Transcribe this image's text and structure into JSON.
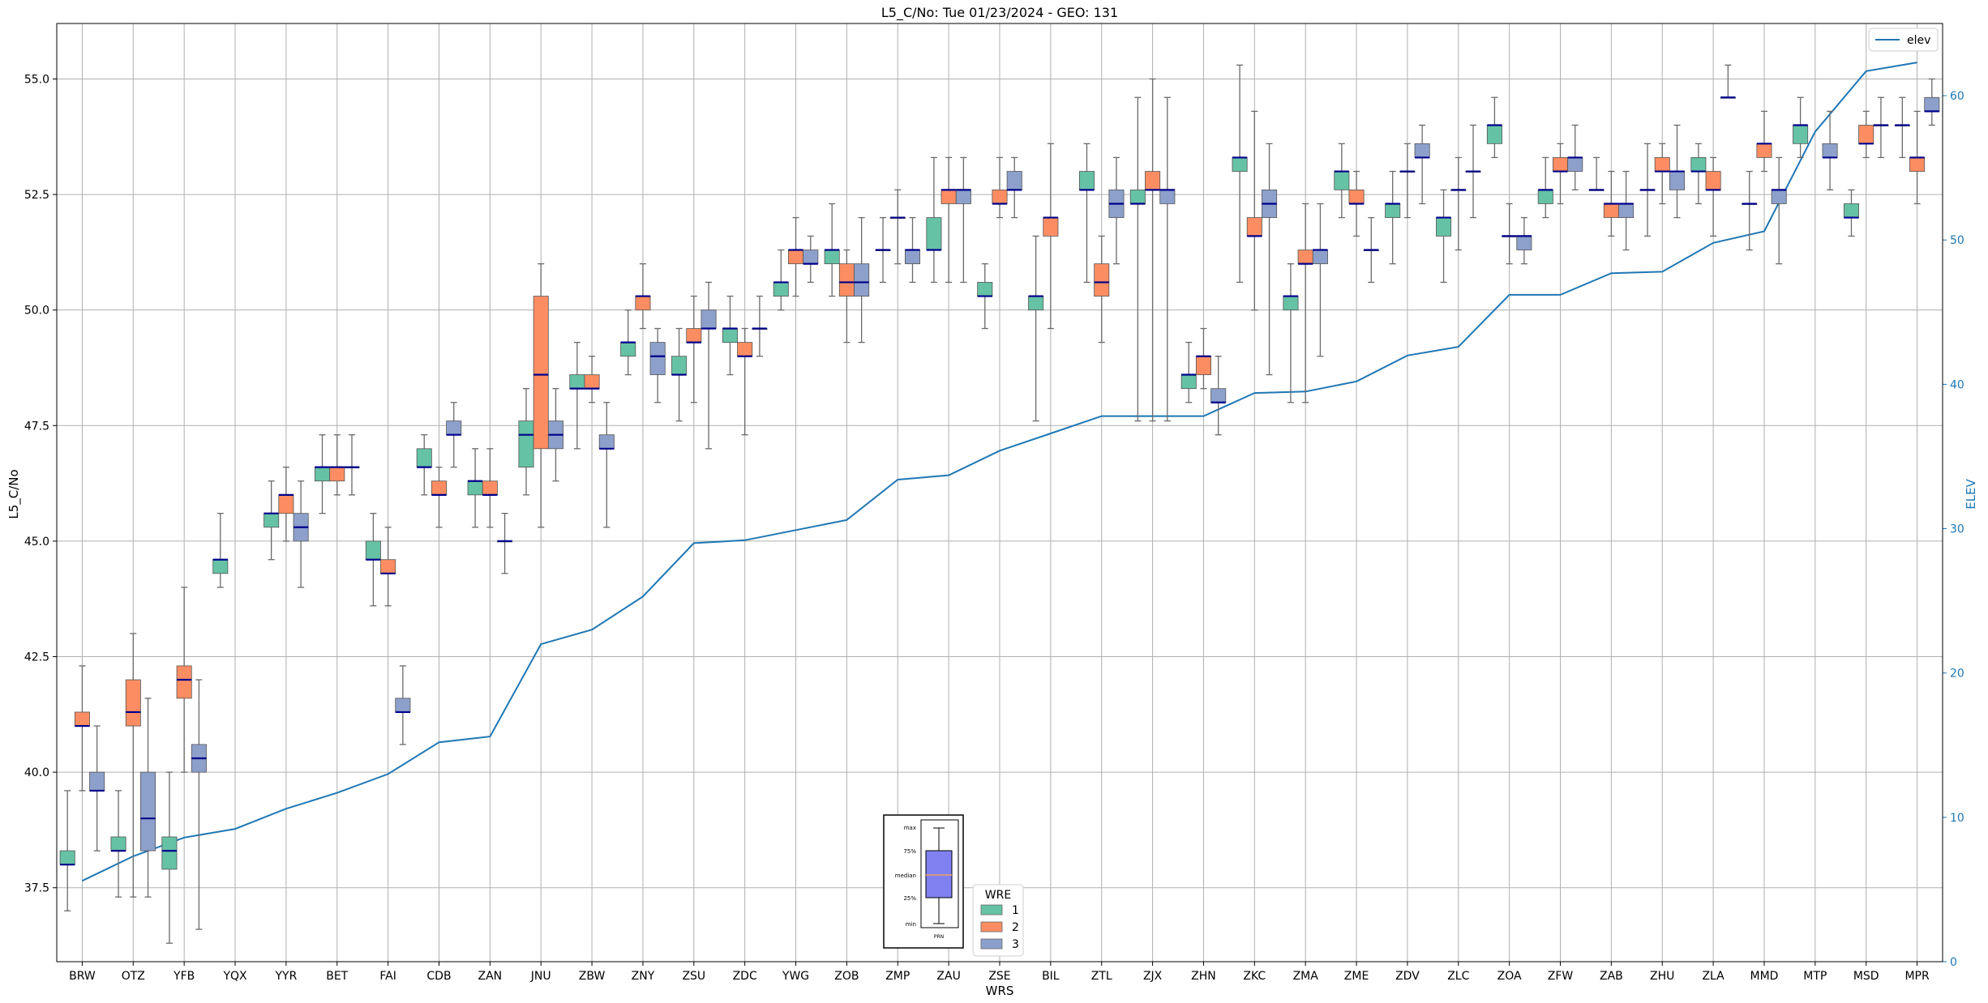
{
  "chart_data": {
    "type": "box",
    "title": "L5_C/No: Tue 01/23/2024 - GEO: 131",
    "xlabel": "WRS",
    "ylabel": "L5_C/No",
    "y2label": "ELEV",
    "ylim": [
      35.9,
      56.2
    ],
    "y2lim": [
      0,
      65
    ],
    "yticks": [
      "37.5",
      "40.0",
      "42.5",
      "45.0",
      "47.5",
      "50.0",
      "52.5",
      "55.0"
    ],
    "y2ticks": [
      "0",
      "10",
      "20",
      "30",
      "40",
      "50",
      "60"
    ],
    "grid": true,
    "colors": {
      "1": "#66c2a5",
      "2": "#fc8d62",
      "3": "#8da0cb",
      "median": "#00008b",
      "elev": "#1f77b4"
    },
    "categories": [
      "BRW",
      "OTZ",
      "YFB",
      "YQX",
      "YYR",
      "BET",
      "FAI",
      "CDB",
      "ZAN",
      "JNU",
      "ZBW",
      "ZNY",
      "ZSU",
      "ZDC",
      "YWG",
      "ZOB",
      "ZMP",
      "ZAU",
      "ZSE",
      "BIL",
      "ZTL",
      "ZJX",
      "ZHN",
      "ZKC",
      "ZMA",
      "ZME",
      "ZDV",
      "ZLC",
      "ZOA",
      "ZFW",
      "ZAB",
      "ZHU",
      "ZLA",
      "MMD",
      "MTP",
      "MSD",
      "MPR"
    ],
    "boxes": [
      [
        [
          37,
          38,
          38,
          38.3,
          39.6
        ],
        [
          39.6,
          41,
          41,
          41.3,
          42.3
        ],
        [
          38.3,
          39.6,
          39.6,
          40,
          41
        ]
      ],
      [
        [
          37.3,
          38.3,
          38.3,
          38.6,
          39.6
        ],
        [
          37.3,
          41,
          41.3,
          42,
          43
        ],
        [
          37.3,
          38.3,
          39,
          40,
          41.6
        ]
      ],
      [
        [
          36.3,
          37.9,
          38.3,
          38.6,
          40
        ],
        [
          40,
          41.6,
          42,
          42.3,
          44
        ],
        [
          36.6,
          40,
          40.3,
          40.6,
          42
        ]
      ],
      [
        [
          44,
          44.3,
          44.6,
          44.6,
          45.6
        ],
        null,
        null
      ],
      [
        [
          44.6,
          45.3,
          45.6,
          45.6,
          46.3
        ],
        [
          45,
          45.6,
          46,
          46,
          46.6
        ],
        [
          44,
          45,
          45.3,
          45.6,
          46.3
        ]
      ],
      [
        [
          45.6,
          46.3,
          46.6,
          46.6,
          47.3
        ],
        [
          46,
          46.3,
          46.6,
          46.6,
          47.3
        ],
        [
          46,
          46.6,
          46.6,
          46.6,
          47.3
        ]
      ],
      [
        [
          43.6,
          44.6,
          44.6,
          45,
          45.6
        ],
        [
          43.6,
          44.3,
          44.3,
          44.6,
          45.3
        ],
        [
          40.6,
          41.3,
          41.3,
          41.6,
          42.3
        ]
      ],
      [
        [
          46,
          46.6,
          46.6,
          47,
          47.3
        ],
        [
          45.3,
          46,
          46,
          46.3,
          46.6
        ],
        [
          46.6,
          47.3,
          47.3,
          47.6,
          48
        ]
      ],
      [
        [
          45.3,
          46,
          46.3,
          46.3,
          47
        ],
        [
          45.3,
          46,
          46,
          46.3,
          47
        ],
        [
          44.3,
          45,
          45,
          45,
          45.6
        ]
      ],
      [
        [
          46,
          46.6,
          47.3,
          47.6,
          48.3
        ],
        [
          45.3,
          47,
          48.6,
          50.3,
          51
        ],
        [
          46.3,
          47,
          47.3,
          47.6,
          48.3
        ]
      ],
      [
        [
          47,
          48.3,
          48.3,
          48.6,
          49.3
        ],
        [
          48,
          48.3,
          48.3,
          48.6,
          49
        ],
        [
          45.3,
          47,
          47,
          47.3,
          48
        ]
      ],
      [
        [
          48.6,
          49,
          49.3,
          49.3,
          50
        ],
        [
          49.6,
          50,
          50.3,
          50.3,
          51
        ],
        [
          48,
          48.6,
          49,
          49.3,
          49.6
        ]
      ],
      [
        [
          47.6,
          48.6,
          48.6,
          49,
          49.6
        ],
        [
          48,
          49.3,
          49.3,
          49.6,
          50.3
        ],
        [
          47,
          49.6,
          49.6,
          50,
          50.6
        ]
      ],
      [
        [
          48.6,
          49.3,
          49.6,
          49.6,
          50.3
        ],
        [
          47.3,
          49,
          49,
          49.3,
          49.6
        ],
        [
          49,
          49.6,
          49.6,
          49.6,
          50.3
        ]
      ],
      [
        [
          50,
          50.3,
          50.6,
          50.6,
          51.3
        ],
        [
          50.3,
          51,
          51.3,
          51.3,
          52
        ],
        [
          50.6,
          51,
          51,
          51.3,
          51.6
        ]
      ],
      [
        [
          50.3,
          51,
          51.3,
          51.3,
          52.3
        ],
        [
          49.3,
          50.3,
          50.6,
          51,
          51.3
        ],
        [
          49.3,
          50.3,
          50.6,
          51,
          52
        ]
      ],
      [
        [
          50.6,
          51.3,
          51.3,
          51.3,
          52
        ],
        [
          51,
          52,
          52,
          52,
          52.6
        ],
        [
          50.6,
          51,
          51.3,
          51.3,
          52
        ]
      ],
      [
        [
          50.6,
          51.3,
          51.3,
          52,
          53.3
        ],
        [
          50.6,
          52.3,
          52.6,
          52.6,
          53.3
        ],
        [
          50.6,
          52.3,
          52.6,
          52.6,
          53.3
        ]
      ],
      [
        [
          49.6,
          50.3,
          50.3,
          50.6,
          51
        ],
        [
          52,
          52.3,
          52.3,
          52.6,
          53.3
        ],
        [
          52,
          52.6,
          52.6,
          53,
          53.3
        ]
      ],
      [
        [
          47.6,
          50,
          50.3,
          50.3,
          51.6
        ],
        [
          49.6,
          51.6,
          52,
          52,
          53.6
        ],
        null
      ],
      [
        [
          50.6,
          52.6,
          52.6,
          53,
          53.6
        ],
        [
          49.3,
          50.3,
          50.6,
          51,
          51.6
        ],
        [
          51,
          52,
          52.3,
          52.6,
          53.3
        ]
      ],
      [
        [
          47.6,
          52.3,
          52.3,
          52.6,
          54.6
        ],
        [
          47.6,
          52.6,
          52.6,
          53,
          55
        ],
        [
          47.6,
          52.3,
          52.6,
          52.6,
          54.6
        ]
      ],
      [
        [
          48,
          48.3,
          48.6,
          48.6,
          49.3
        ],
        [
          48.3,
          48.6,
          49,
          49,
          49.6
        ],
        [
          47.3,
          48,
          48,
          48.3,
          49
        ]
      ],
      [
        [
          50.6,
          53,
          53.3,
          53.3,
          55.3
        ],
        [
          50,
          51.6,
          51.6,
          52,
          54.3
        ],
        [
          48.6,
          52,
          52.3,
          52.6,
          53.6
        ]
      ],
      [
        [
          48,
          50,
          50.3,
          50.3,
          51
        ],
        [
          48,
          51,
          51,
          51.3,
          52.3
        ],
        [
          49,
          51,
          51.3,
          51.3,
          52.3
        ]
      ],
      [
        [
          52,
          52.6,
          53,
          53,
          53.6
        ],
        [
          51.6,
          52.3,
          52.3,
          52.6,
          53
        ],
        [
          50.6,
          51.3,
          51.3,
          51.3,
          52
        ]
      ],
      [
        [
          51,
          52,
          52.3,
          52.3,
          53
        ],
        [
          52,
          53,
          53,
          53,
          53.6
        ],
        [
          52.3,
          53.3,
          53.3,
          53.6,
          54
        ]
      ],
      [
        [
          50.6,
          51.6,
          52,
          52,
          52.6
        ],
        [
          51.3,
          52.6,
          52.6,
          52.6,
          53.3
        ],
        [
          52,
          53,
          53,
          53,
          54
        ]
      ],
      [
        [
          53.3,
          53.6,
          54,
          54,
          54.6
        ],
        [
          51,
          51.6,
          51.6,
          51.6,
          52.3
        ],
        [
          51,
          51.3,
          51.6,
          51.6,
          52
        ]
      ],
      [
        [
          52,
          52.3,
          52.6,
          52.6,
          53.3
        ],
        [
          52.3,
          53,
          53,
          53.3,
          53.6
        ],
        [
          52.6,
          53,
          53.3,
          53.3,
          54
        ]
      ],
      [
        [
          52.6,
          52.6,
          52.6,
          52.6,
          53.3
        ],
        [
          51.6,
          52,
          52.3,
          52.3,
          53
        ],
        [
          51.3,
          52,
          52.3,
          52.3,
          53
        ]
      ],
      [
        [
          51.6,
          52.6,
          52.6,
          52.6,
          53.6
        ],
        [
          52.3,
          53,
          53,
          53.3,
          53.6
        ],
        [
          52,
          52.6,
          53,
          53,
          54
        ]
      ],
      [
        [
          52.3,
          53,
          53,
          53.3,
          53.6
        ],
        [
          51.6,
          52.6,
          52.6,
          53,
          53.3
        ],
        [
          54.6,
          54.6,
          54.6,
          54.6,
          55.3
        ]
      ],
      [
        [
          51.3,
          52.3,
          52.3,
          52.3,
          53
        ],
        [
          53,
          53.3,
          53.6,
          53.6,
          54.3
        ],
        [
          51,
          52.3,
          52.6,
          52.6,
          53.3
        ]
      ],
      [
        [
          53.3,
          53.6,
          54,
          54,
          54.6
        ],
        null,
        [
          52.6,
          53.3,
          53.3,
          53.6,
          54.3
        ]
      ],
      [
        [
          51.6,
          52,
          52,
          52.3,
          52.6
        ],
        [
          53.3,
          53.6,
          53.6,
          54,
          54.3
        ],
        [
          53.3,
          54,
          54,
          54,
          54.6
        ]
      ],
      [
        [
          53.3,
          54,
          54,
          54,
          54.6
        ],
        [
          52.3,
          53,
          53.3,
          53.3,
          54.3
        ],
        [
          54,
          54.3,
          54.3,
          54.6,
          55
        ]
      ]
    ],
    "elev": [
      5.6,
      7.3,
      8.6,
      9.2,
      10.6,
      11.7,
      13,
      15.2,
      15.6,
      22,
      23,
      25.3,
      29,
      29.2,
      29.9,
      30.6,
      33.4,
      33.7,
      35.4,
      36.6,
      37.8,
      37.8,
      37.8,
      39.4,
      39.5,
      40.2,
      42,
      42.6,
      46.2,
      46.2,
      47.7,
      47.8,
      49.8,
      50.6,
      57.5,
      61.7,
      62.3
    ],
    "legend": {
      "title": "WRE",
      "items": [
        "1",
        "2",
        "3"
      ]
    },
    "elev_legend": "elev",
    "inset": {
      "labels": [
        "max",
        "75%",
        "median",
        "25%",
        "min"
      ],
      "xlabel": "PRN"
    }
  }
}
